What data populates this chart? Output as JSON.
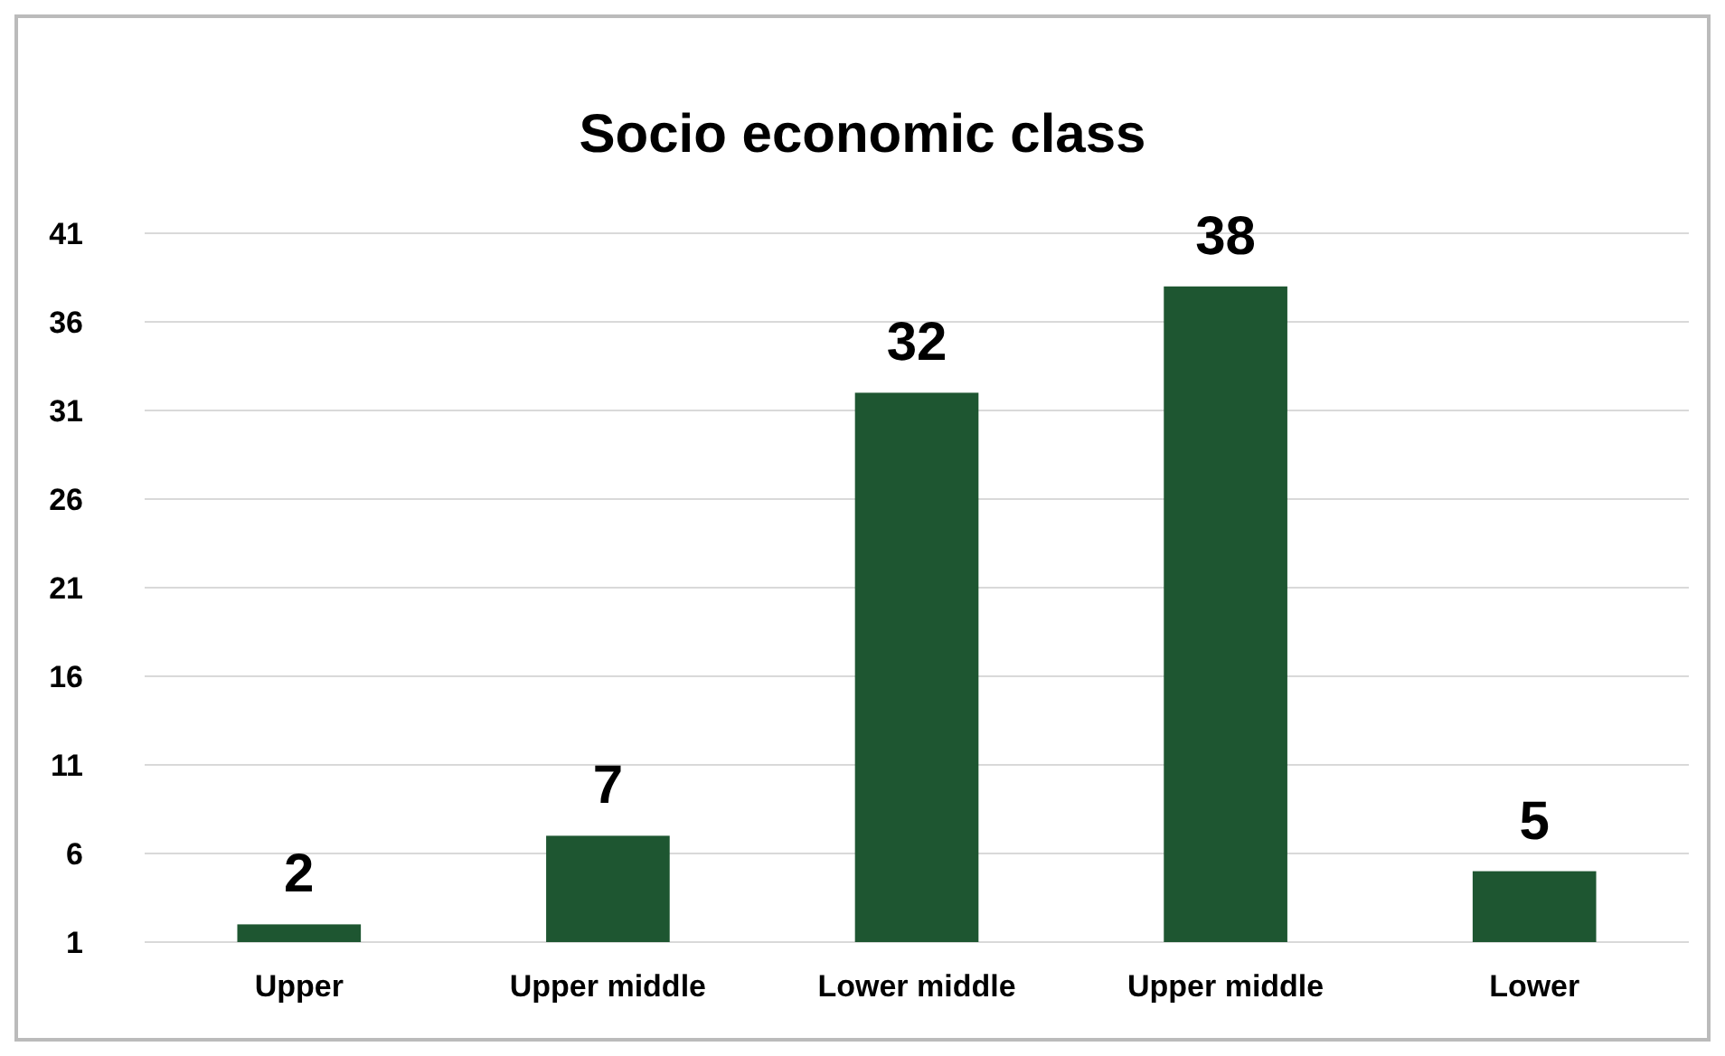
{
  "chart_data": {
    "type": "bar",
    "title": "Socio economic class",
    "categories": [
      "Upper",
      "Upper middle",
      "Lower middle",
      "Upper middle",
      "Lower"
    ],
    "values": [
      2,
      7,
      32,
      38,
      5
    ],
    "color": "#1e5631",
    "ylim": [
      1,
      41
    ],
    "yticks": [
      1,
      6,
      11,
      16,
      21,
      26,
      31,
      36,
      41
    ],
    "grid": "y",
    "data_labels": true
  }
}
